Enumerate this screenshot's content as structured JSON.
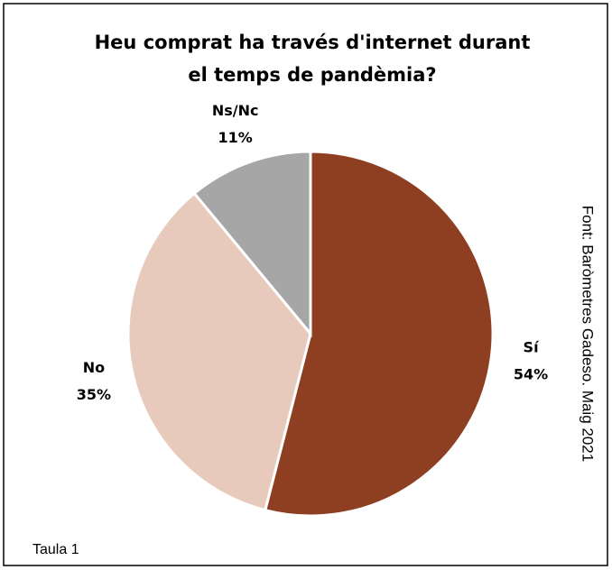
{
  "chart_data": {
    "type": "pie",
    "title": [
      "Heu comprat ha través d'internet durant",
      "el temps de pandèmia?"
    ],
    "categories": [
      "Sí",
      "No",
      "Ns/Nc"
    ],
    "values": [
      54,
      35,
      11
    ],
    "value_labels": [
      "54%",
      "35%",
      "11%"
    ],
    "colors": [
      "#8e3f22",
      "#e8cabd",
      "#a6a6a6"
    ],
    "source": "Font: Baròmetres Gadeso. Maig 2021",
    "caption": "Taula 1"
  }
}
